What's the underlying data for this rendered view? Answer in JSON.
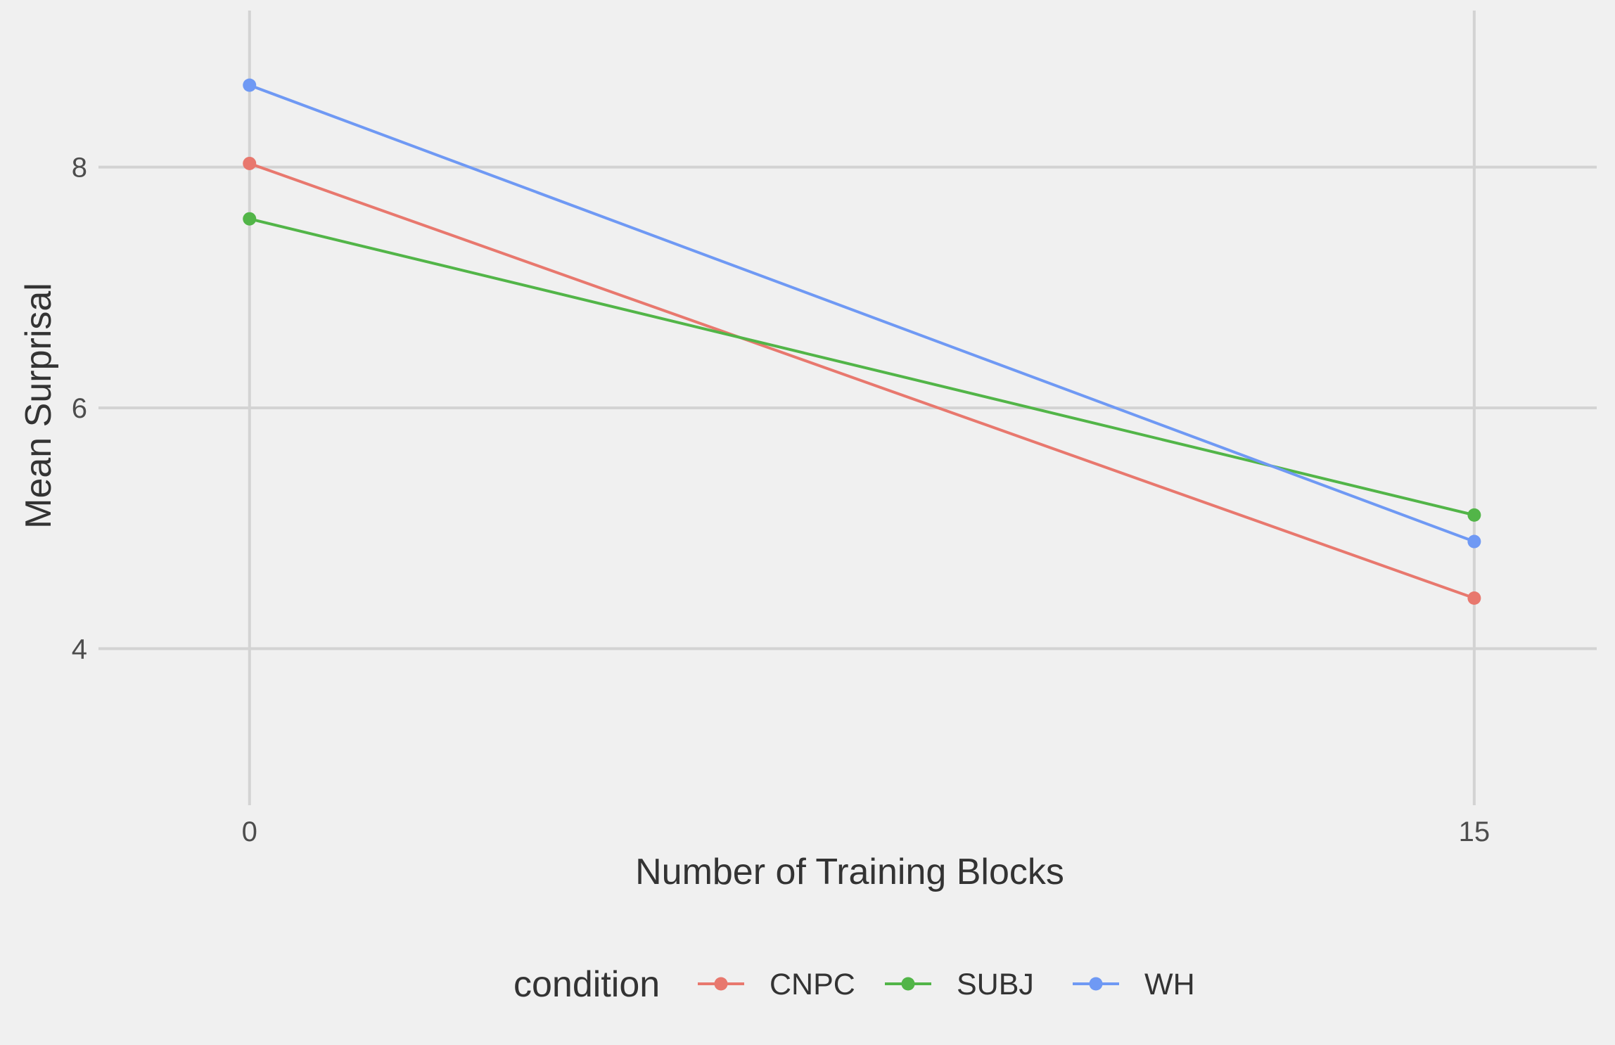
{
  "chart_data": {
    "type": "line",
    "xlabel": "Number of Training Blocks",
    "ylabel": "Mean Surprisal",
    "x": [
      0,
      15
    ],
    "x_ticks": [
      "0",
      "15"
    ],
    "y_ticks": [
      "4",
      "6",
      "8"
    ],
    "xlim": [
      -1.85,
      16.5
    ],
    "ylim": [
      2.7,
      9.3
    ],
    "grid": true,
    "legend": {
      "title": "condition",
      "position": "bottom"
    },
    "series": [
      {
        "name": "CNPC",
        "color": "#e8786e",
        "values": [
          8.03,
          4.42
        ]
      },
      {
        "name": "SUBJ",
        "color": "#52b548",
        "values": [
          7.57,
          5.11
        ]
      },
      {
        "name": "WH",
        "color": "#6f99f4",
        "values": [
          8.68,
          4.89
        ]
      }
    ]
  }
}
